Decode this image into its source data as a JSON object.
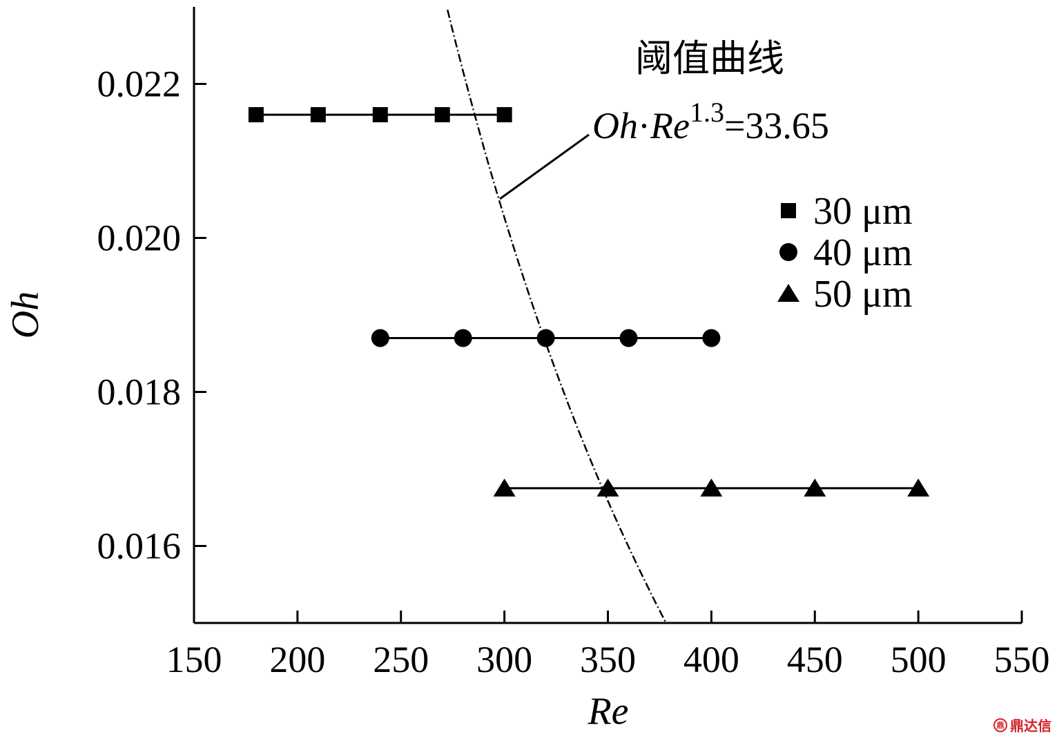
{
  "chart_data": {
    "type": "scatter",
    "xlabel": "Re",
    "ylabel": "Oh",
    "xlim": [
      150,
      550
    ],
    "ylim": [
      0.015,
      0.023
    ],
    "x_ticks": [
      "150",
      "200",
      "250",
      "300",
      "350",
      "400",
      "450",
      "500",
      "550"
    ],
    "y_ticks": [
      "0.016",
      "0.018",
      "0.020",
      "0.022"
    ],
    "grid": false,
    "legend_position": "right",
    "series": [
      {
        "name": "30 μm",
        "marker": "square",
        "x": [
          180,
          210,
          240,
          270,
          300
        ],
        "y": [
          0.0216,
          0.0216,
          0.0216,
          0.0216,
          0.0216
        ]
      },
      {
        "name": "40 μm",
        "marker": "circle",
        "x": [
          240,
          280,
          320,
          360,
          400
        ],
        "y": [
          0.0187,
          0.0187,
          0.0187,
          0.0187,
          0.0187
        ]
      },
      {
        "name": "50 μm",
        "marker": "triangle",
        "x": [
          300,
          350,
          400,
          450,
          500
        ],
        "y": [
          0.01675,
          0.01675,
          0.01675,
          0.01675,
          0.01675
        ]
      }
    ],
    "threshold_curve": {
      "title": "阈值曲线",
      "equation": {
        "oh": "Oh",
        "dot": "·",
        "re": "Re",
        "exp": "1.3",
        "rhs": "=33.65"
      },
      "constant": 33.65,
      "exponent": 1.3,
      "style": "dash-dot"
    }
  },
  "watermark": {
    "logo": "鼎",
    "text": "鼎达信"
  }
}
